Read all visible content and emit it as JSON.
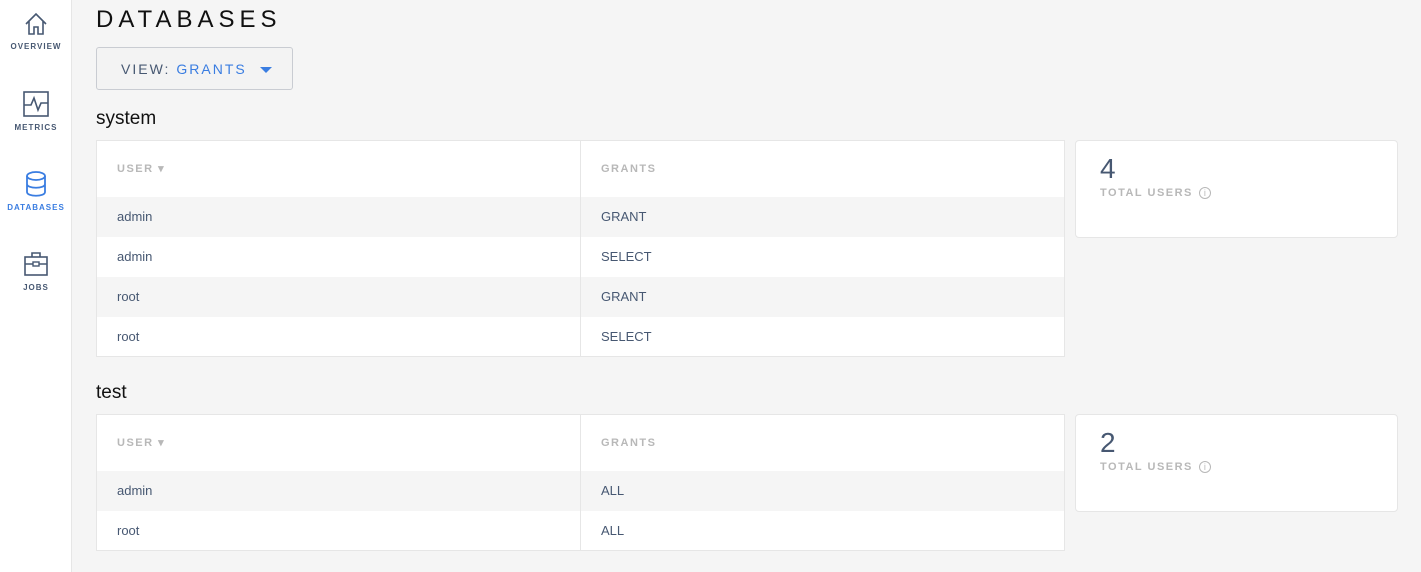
{
  "sidebar": {
    "items": [
      {
        "label": "OVERVIEW",
        "icon": "home-icon"
      },
      {
        "label": "METRICS",
        "icon": "metrics-icon"
      },
      {
        "label": "DATABASES",
        "icon": "database-icon",
        "active": true
      },
      {
        "label": "JOBS",
        "icon": "briefcase-icon"
      }
    ]
  },
  "page_title": "DATABASES",
  "view": {
    "label": "VIEW:",
    "value": "GRANTS"
  },
  "accent": "#3a7de1",
  "databases": [
    {
      "name": "system",
      "headers": {
        "user": "USER ▾",
        "grants": "GRANTS"
      },
      "rows": [
        [
          "admin",
          "GRANT"
        ],
        [
          "admin",
          "SELECT"
        ],
        [
          "root",
          "GRANT"
        ],
        [
          "root",
          "SELECT"
        ]
      ],
      "total": "4",
      "total_label": "TOTAL USERS"
    },
    {
      "name": "test",
      "headers": {
        "user": "USER ▾",
        "grants": "GRANTS"
      },
      "rows": [
        [
          "admin",
          "ALL"
        ],
        [
          "root",
          "ALL"
        ]
      ],
      "total": "2",
      "total_label": "TOTAL USERS"
    }
  ]
}
